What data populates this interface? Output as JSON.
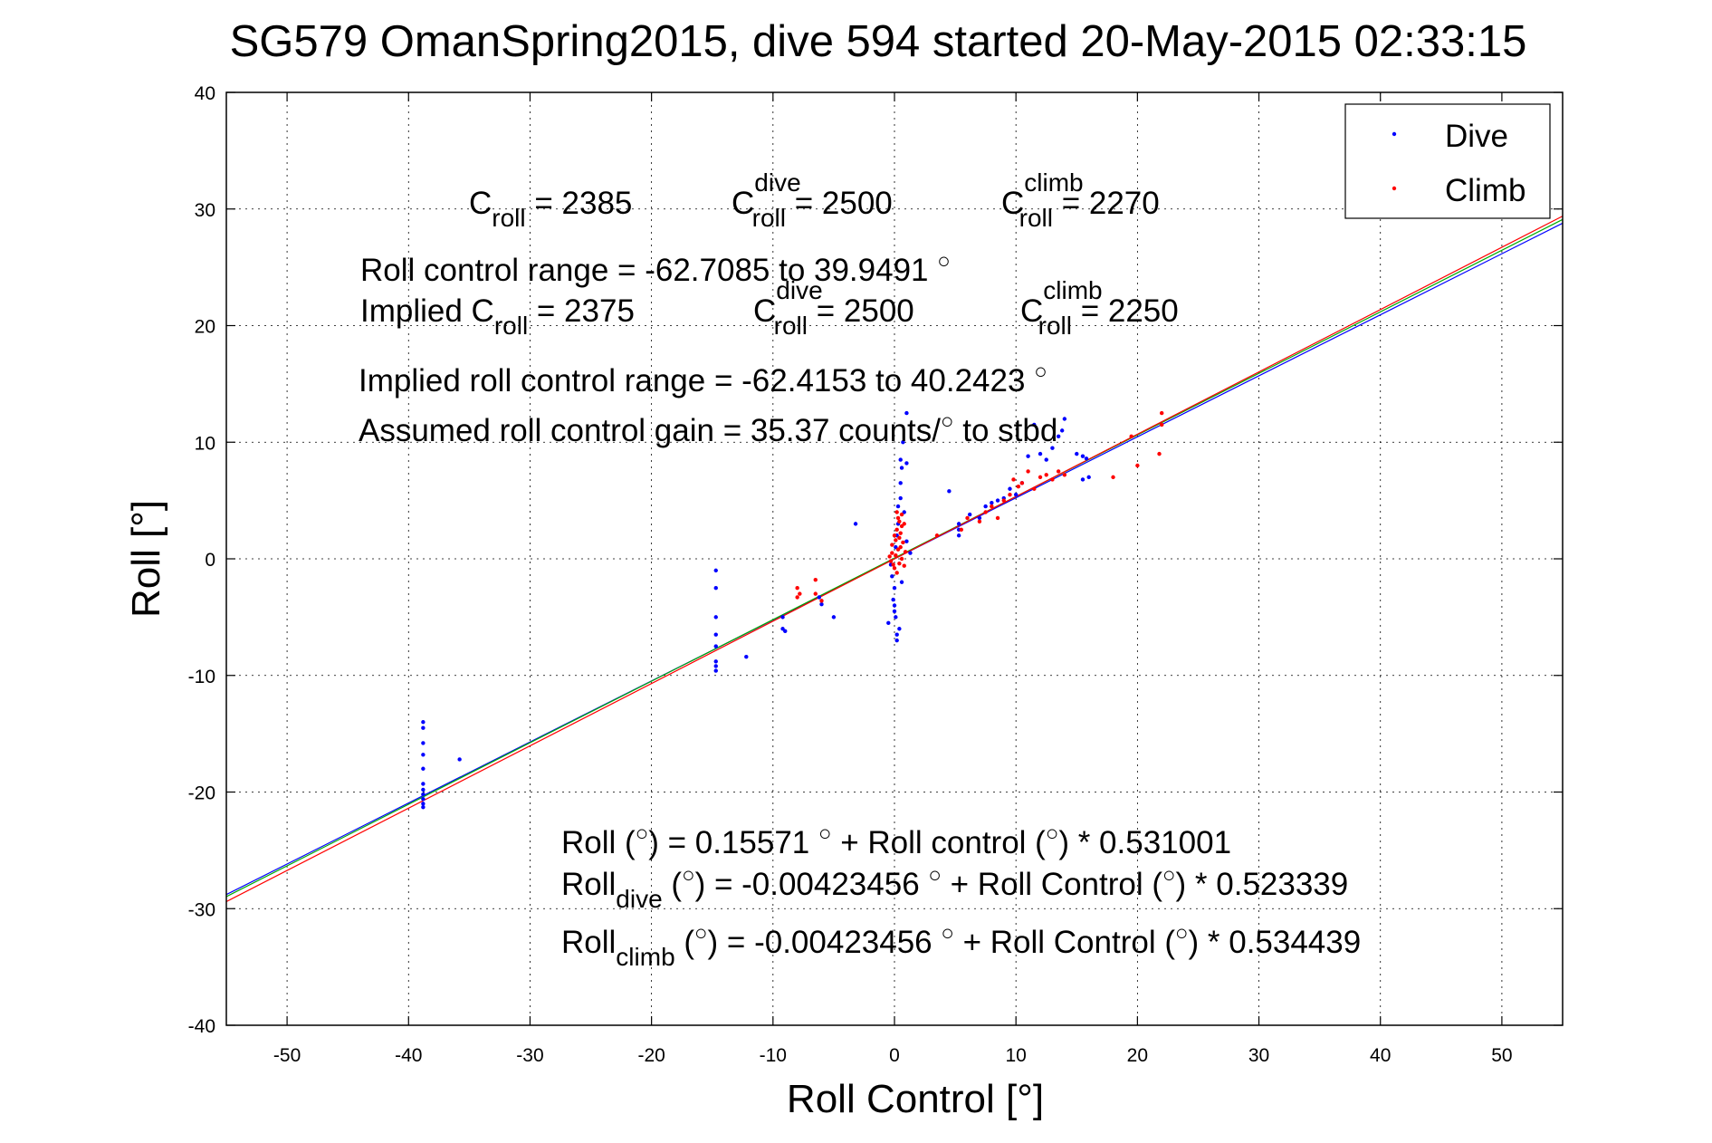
{
  "chart_data": {
    "type": "scatter",
    "title": "SG579 OmanSpring2015, dive 594 started 20-May-2015 02:33:15",
    "xlabel": "Roll Control [°]",
    "ylabel": "Roll [°]",
    "xlim": [
      -55,
      55
    ],
    "ylim": [
      -40,
      40
    ],
    "xticks": [
      -50,
      -40,
      -30,
      -20,
      -10,
      0,
      10,
      20,
      30,
      40,
      50
    ],
    "yticks": [
      -40,
      -30,
      -20,
      -10,
      0,
      10,
      20,
      30,
      40
    ],
    "grid": true,
    "legend": {
      "placement": "top-right",
      "entries": [
        "Dive",
        "Climb"
      ]
    },
    "series": [
      {
        "name": "Dive",
        "color": "#0000ff",
        "points": [
          [
            -38.8,
            -14.0
          ],
          [
            -38.8,
            -14.5
          ],
          [
            -38.8,
            -15.8
          ],
          [
            -38.8,
            -16.8
          ],
          [
            -38.8,
            -18.0
          ],
          [
            -38.8,
            -19.3
          ],
          [
            -38.8,
            -19.8
          ],
          [
            -38.8,
            -20.2
          ],
          [
            -38.8,
            -20.6
          ],
          [
            -38.8,
            -21.0
          ],
          [
            -38.8,
            -21.3
          ],
          [
            -35.8,
            -17.2
          ],
          [
            -14.7,
            -1.0
          ],
          [
            -14.7,
            -2.5
          ],
          [
            -14.7,
            -5.0
          ],
          [
            -14.7,
            -6.5
          ],
          [
            -14.7,
            -7.5
          ],
          [
            -14.7,
            -8.8
          ],
          [
            -14.7,
            -9.2
          ],
          [
            -14.7,
            -9.6
          ],
          [
            -12.2,
            -8.4
          ],
          [
            -9.2,
            -5.0
          ],
          [
            -9.2,
            -6.0
          ],
          [
            -9.0,
            -6.2
          ],
          [
            -6.2,
            -3.3
          ],
          [
            -6.0,
            -3.9
          ],
          [
            -5.0,
            -5.0
          ],
          [
            -3.2,
            3.0
          ],
          [
            -0.5,
            -5.5
          ],
          [
            -0.3,
            -0.5
          ],
          [
            -0.2,
            -1.5
          ],
          [
            -0.1,
            -3.5
          ],
          [
            0.0,
            -2.5
          ],
          [
            0.0,
            -4.0
          ],
          [
            0.0,
            -4.5
          ],
          [
            0.1,
            -5.0
          ],
          [
            0.2,
            -6.5
          ],
          [
            0.2,
            -7.0
          ],
          [
            0.1,
            1.0
          ],
          [
            0.2,
            2.0
          ],
          [
            0.3,
            3.0
          ],
          [
            0.3,
            4.5
          ],
          [
            0.5,
            5.2
          ],
          [
            0.5,
            6.5
          ],
          [
            0.6,
            7.8
          ],
          [
            0.5,
            8.5
          ],
          [
            1.0,
            8.2
          ],
          [
            1.0,
            12.5
          ],
          [
            0.7,
            10.0
          ],
          [
            0.8,
            4.0
          ],
          [
            1.0,
            1.5
          ],
          [
            1.3,
            0.5
          ],
          [
            0.6,
            -2.0
          ],
          [
            0.4,
            -6.0
          ],
          [
            4.5,
            5.8
          ],
          [
            5.3,
            3.0
          ],
          [
            5.3,
            2.5
          ],
          [
            5.3,
            2.0
          ],
          [
            6.2,
            3.8
          ],
          [
            7.0,
            3.5
          ],
          [
            7.5,
            4.5
          ],
          [
            8.0,
            4.8
          ],
          [
            8.5,
            5.0
          ],
          [
            9.0,
            5.2
          ],
          [
            9.5,
            6.0
          ],
          [
            10.0,
            5.5
          ],
          [
            10.5,
            6.5
          ],
          [
            11.0,
            8.8
          ],
          [
            11.5,
            11.5
          ],
          [
            12.0,
            9.0
          ],
          [
            12.5,
            8.5
          ],
          [
            13.0,
            9.5
          ],
          [
            13.5,
            10.5
          ],
          [
            13.8,
            11.0
          ],
          [
            14.0,
            12.0
          ],
          [
            15.0,
            9.0
          ],
          [
            15.5,
            8.8
          ],
          [
            15.8,
            8.6
          ],
          [
            16.0,
            7.0
          ],
          [
            15.5,
            6.8
          ]
        ]
      },
      {
        "name": "Climb",
        "color": "#ff0000",
        "points": [
          [
            -8.0,
            -2.5
          ],
          [
            -8.0,
            -3.3
          ],
          [
            -7.8,
            -3.0
          ],
          [
            -6.5,
            -1.8
          ],
          [
            -6.5,
            -3.0
          ],
          [
            -6.0,
            -3.6
          ],
          [
            -0.4,
            0.2
          ],
          [
            -0.3,
            -0.2
          ],
          [
            -0.2,
            0.5
          ],
          [
            -0.2,
            1.2
          ],
          [
            -0.1,
            -0.5
          ],
          [
            0.0,
            2.0
          ],
          [
            0.0,
            -0.8
          ],
          [
            0.1,
            0.3
          ],
          [
            0.1,
            1.6
          ],
          [
            0.2,
            2.5
          ],
          [
            0.2,
            -1.2
          ],
          [
            0.3,
            3.5
          ],
          [
            0.3,
            0.8
          ],
          [
            0.4,
            1.8
          ],
          [
            0.4,
            -0.4
          ],
          [
            0.5,
            2.2
          ],
          [
            0.5,
            1.0
          ],
          [
            0.6,
            2.8
          ],
          [
            0.6,
            0.0
          ],
          [
            0.7,
            1.4
          ],
          [
            0.8,
            3.0
          ],
          [
            0.8,
            -0.6
          ],
          [
            0.9,
            0.6
          ],
          [
            0.2,
            4.0
          ],
          [
            0.4,
            3.2
          ],
          [
            0.6,
            3.8
          ],
          [
            3.5,
            2.0
          ],
          [
            5.5,
            2.5
          ],
          [
            6.0,
            3.5
          ],
          [
            7.0,
            3.2
          ],
          [
            7.5,
            4.0
          ],
          [
            8.0,
            4.5
          ],
          [
            8.5,
            3.5
          ],
          [
            9.0,
            5.0
          ],
          [
            9.5,
            5.5
          ],
          [
            9.8,
            6.8
          ],
          [
            10.2,
            6.2
          ],
          [
            10.5,
            6.5
          ],
          [
            11.0,
            7.5
          ],
          [
            11.5,
            6.0
          ],
          [
            12.0,
            7.0
          ],
          [
            12.5,
            7.2
          ],
          [
            13.0,
            6.8
          ],
          [
            13.5,
            7.5
          ],
          [
            14.0,
            7.2
          ],
          [
            18.0,
            7.0
          ],
          [
            20.0,
            8.0
          ],
          [
            21.8,
            9.0
          ],
          [
            22.0,
            11.5
          ],
          [
            22.0,
            12.5
          ],
          [
            19.5,
            10.5
          ]
        ]
      }
    ],
    "lines": [
      {
        "color": "#0000ff",
        "x": [
          -55,
          55
        ],
        "y": [
          -28.79,
          28.78
        ]
      },
      {
        "color": "#00aa00",
        "x": [
          -55,
          55
        ],
        "y": [
          -28.97,
          29.1
        ]
      },
      {
        "color": "#ff0000",
        "x": [
          -55,
          55
        ],
        "y": [
          -29.4,
          29.39
        ]
      }
    ]
  }
}
